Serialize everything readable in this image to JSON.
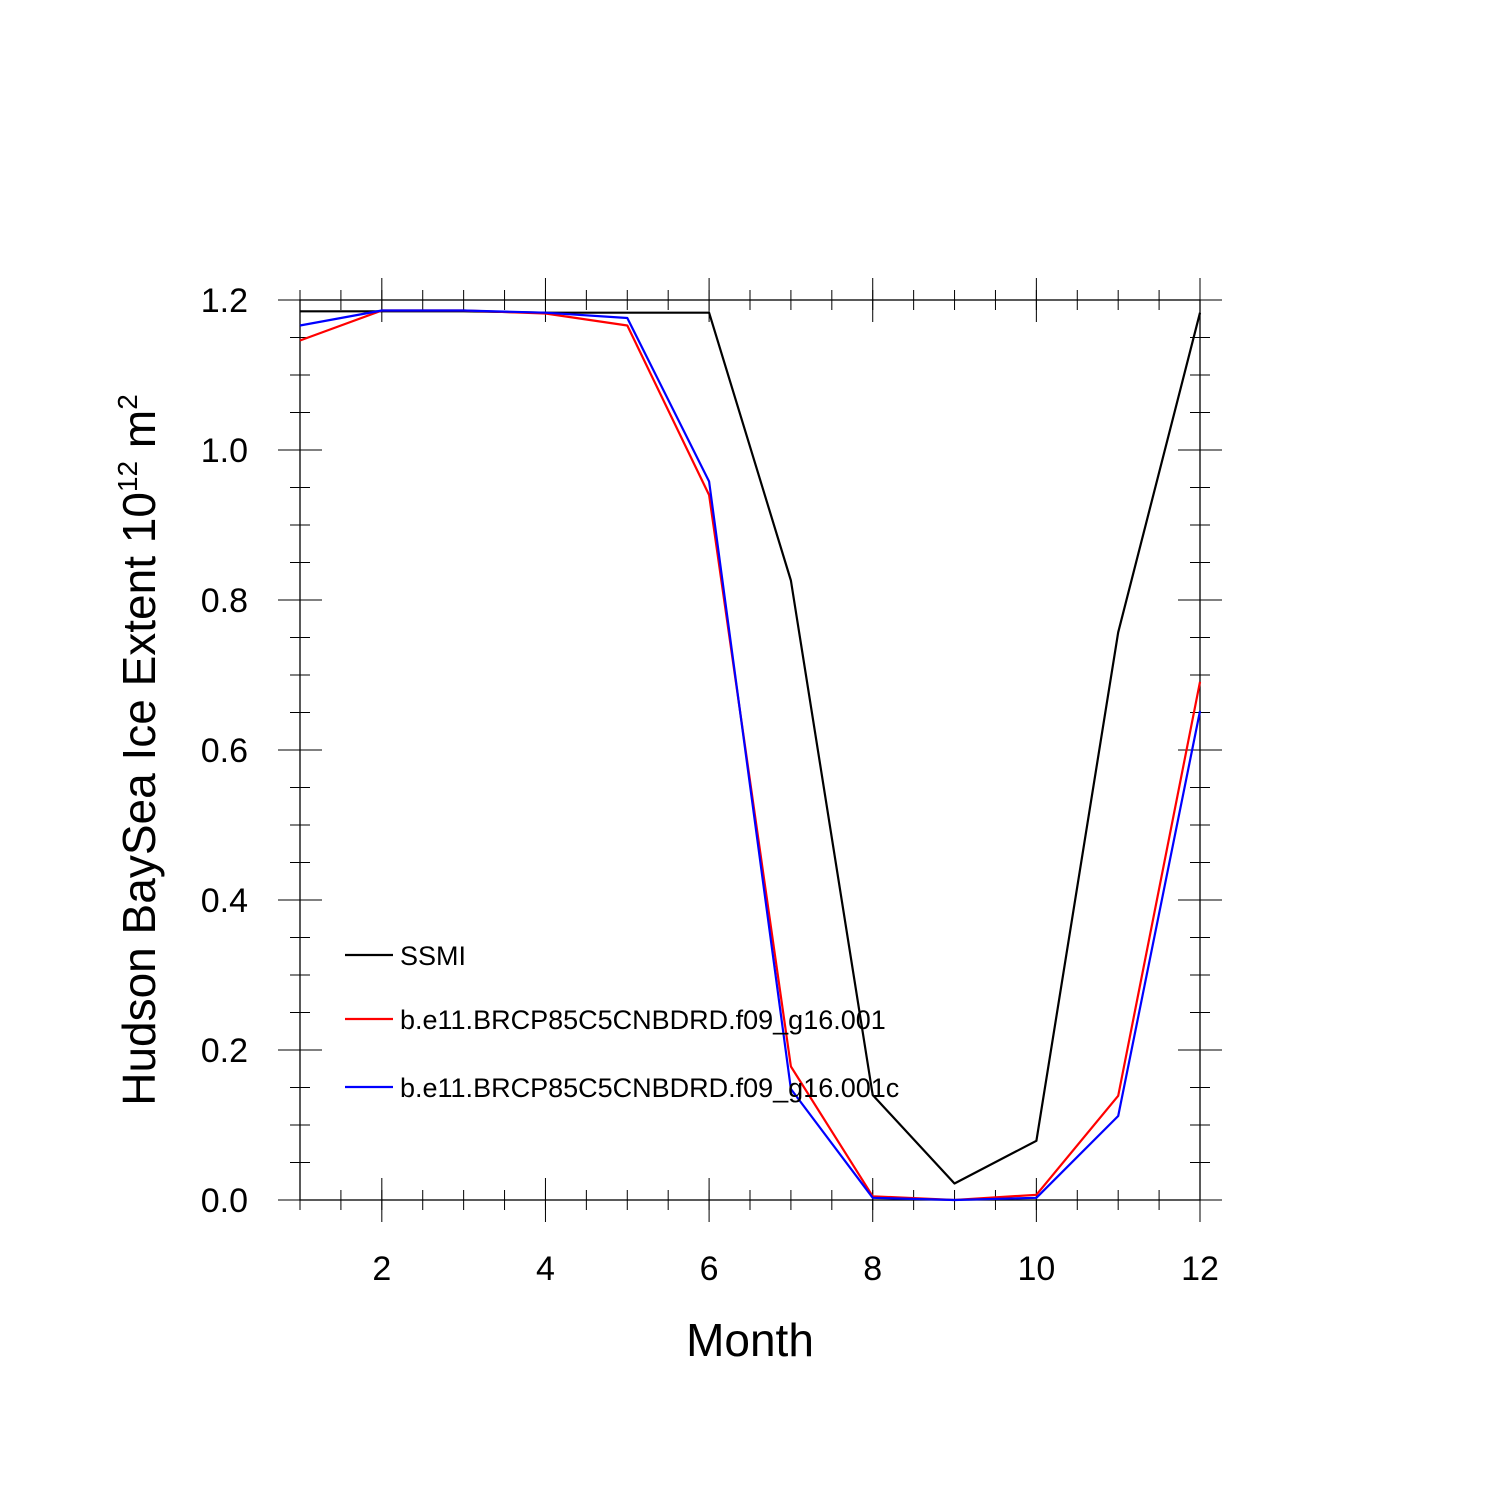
{
  "chart_data": {
    "type": "line",
    "title": "",
    "xlabel": "Month",
    "ylabel": {
      "base": "Hudson BaySea Ice Extent 10",
      "exponent": "12",
      "unit": " m",
      "unit_exponent": "2"
    },
    "xlim": [
      1,
      12
    ],
    "ylim": [
      0,
      1.2
    ],
    "x": [
      1,
      2,
      3,
      4,
      5,
      6,
      7,
      8,
      9,
      10,
      11,
      12
    ],
    "x_ticks": [
      2,
      4,
      6,
      8,
      10,
      12
    ],
    "x_tick_labels": [
      "2",
      "4",
      "6",
      "8",
      "10",
      "12"
    ],
    "y_ticks": [
      0,
      0.2,
      0.4,
      0.6,
      0.8,
      1.0,
      1.2
    ],
    "y_tick_labels": [
      "0.0",
      "0.2",
      "0.4",
      "0.6",
      "0.8",
      "1.0",
      "1.2"
    ],
    "grid": false,
    "legend_position": "lower-left inside",
    "series": [
      {
        "name": "SSMI",
        "color": "#000000",
        "values": [
          1.185,
          1.185,
          1.185,
          1.183,
          1.183,
          1.183,
          0.826,
          0.14,
          0.022,
          0.079,
          0.757,
          1.183
        ]
      },
      {
        "name": "b.e11.BRCP85C5CNBDRD.f09_g16.001",
        "color": "#ff0000",
        "values": [
          1.146,
          1.186,
          1.186,
          1.182,
          1.166,
          0.94,
          0.178,
          0.005,
          0.0,
          0.007,
          0.139,
          0.691
        ]
      },
      {
        "name": "b.e11.BRCP85C5CNBDRD.f09_g16.001c",
        "color": "#0000ff",
        "values": [
          1.166,
          1.186,
          1.186,
          1.183,
          1.176,
          0.958,
          0.148,
          0.003,
          0.0,
          0.003,
          0.112,
          0.652
        ]
      }
    ]
  }
}
